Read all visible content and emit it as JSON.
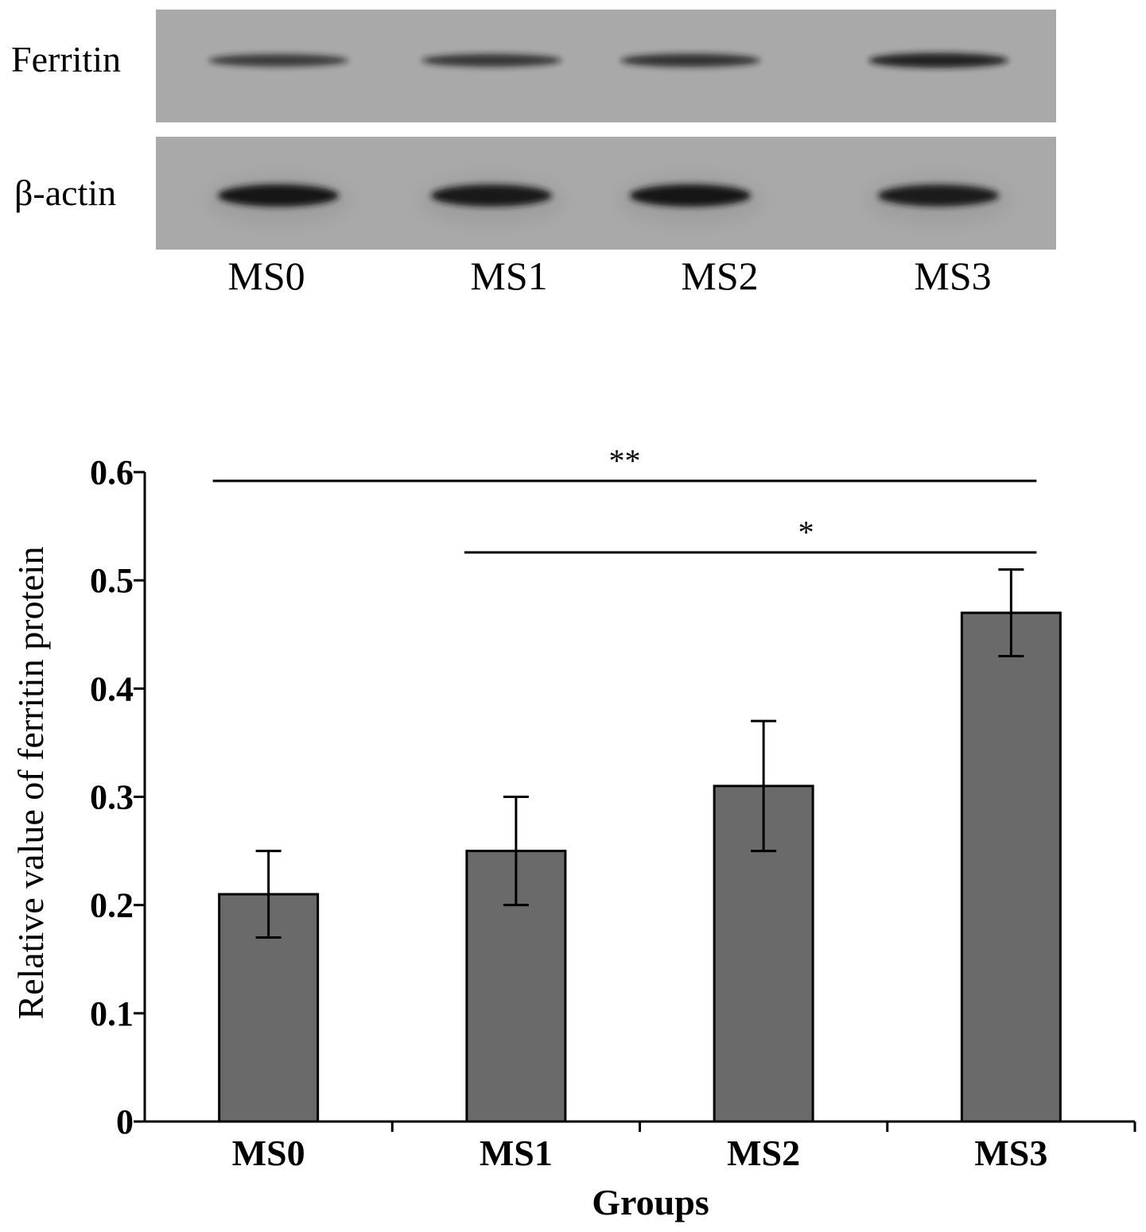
{
  "blot": {
    "rows": [
      {
        "label": "Ferritin",
        "intensities": [
          0.55,
          0.6,
          0.65,
          0.85
        ]
      },
      {
        "label": "β-actin",
        "intensities": [
          1.0,
          0.95,
          1.0,
          0.92
        ]
      }
    ],
    "lanes": [
      "MS0",
      "MS1",
      "MS2",
      "MS3"
    ],
    "membrane_color": "#a9a9a9",
    "band_color": "#121212"
  },
  "chart_data": {
    "type": "bar",
    "categories": [
      "MS0",
      "MS1",
      "MS2",
      "MS3"
    ],
    "values": [
      0.21,
      0.25,
      0.31,
      0.47
    ],
    "error_low": [
      0.17,
      0.2,
      0.25,
      0.43
    ],
    "error_high": [
      0.25,
      0.3,
      0.37,
      0.51
    ],
    "xlabel": "Groups",
    "ylabel": "Relative value of ferritin protein",
    "ylim": [
      0,
      0.6
    ],
    "yticks": [
      0,
      0.1,
      0.2,
      0.3,
      0.4,
      0.5,
      0.6
    ],
    "ytick_labels": [
      "0",
      "0.1",
      "0.2",
      "0.3",
      "0.4",
      "0.5",
      "0.6"
    ],
    "grid": false,
    "bar_color": "#6a6a6a",
    "significance": [
      {
        "from": "MS0",
        "to": "MS3",
        "label": "**"
      },
      {
        "from": "MS1",
        "to": "MS3",
        "label": "*"
      }
    ]
  }
}
